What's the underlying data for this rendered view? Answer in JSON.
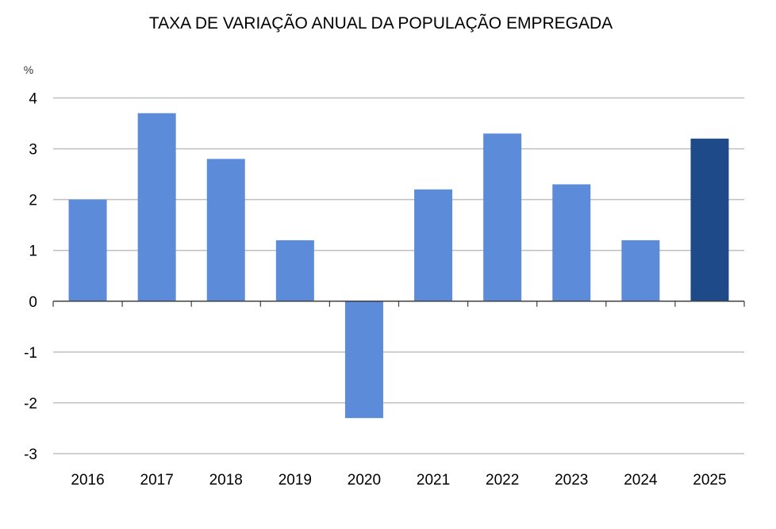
{
  "chart_data": {
    "type": "bar",
    "title": "TAXA DE VARIAÇÃO ANUAL DA POPULAÇÃO EMPREGADA",
    "xlabel": "",
    "ylabel": "%",
    "categories": [
      "2016",
      "2017",
      "2018",
      "2019",
      "2020",
      "2021",
      "2022",
      "2023",
      "2024",
      "2025"
    ],
    "values": [
      2.0,
      3.7,
      2.8,
      1.2,
      -2.3,
      2.2,
      3.3,
      2.3,
      1.2,
      3.2
    ],
    "highlight_index": 9,
    "ylim": [
      -3,
      4
    ],
    "yticks": [
      4,
      3,
      2,
      1,
      0,
      -1,
      -2,
      -3
    ],
    "grid": true,
    "legend": "none",
    "colors": {
      "bar": "#5b8bd9",
      "highlight": "#1f4a8a",
      "grid": "#bfbfbf",
      "axis": "#404040"
    }
  }
}
